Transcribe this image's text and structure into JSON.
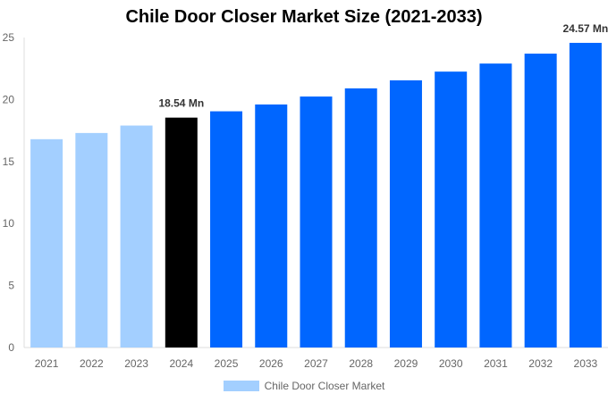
{
  "chart_data": {
    "type": "bar",
    "title": "Chile Door Closer Market Size (2021-2033)",
    "categories": [
      "2021",
      "2022",
      "2023",
      "2024",
      "2025",
      "2026",
      "2027",
      "2028",
      "2029",
      "2030",
      "2031",
      "2032",
      "2033"
    ],
    "series": [
      {
        "name": "Chile Door Closer Market",
        "values": [
          16.8,
          17.3,
          17.9,
          18.54,
          19.05,
          19.6,
          20.24,
          20.9,
          21.55,
          22.25,
          22.9,
          23.7,
          24.57
        ]
      }
    ],
    "data_labels": {
      "3": "18.54 Mn",
      "12": "24.57 Mn"
    },
    "bar_colors": [
      "#a3cfff",
      "#a3cfff",
      "#a3cfff",
      "#000000",
      "#0066ff",
      "#0066ff",
      "#0066ff",
      "#0066ff",
      "#0066ff",
      "#0066ff",
      "#0066ff",
      "#0066ff",
      "#0066ff"
    ],
    "ylim": [
      0,
      25
    ],
    "yticks": [
      0,
      5,
      10,
      15,
      20,
      25
    ],
    "xlabel": "",
    "ylabel": "",
    "grid": false,
    "legend_position": "bottom",
    "legend_color": "#a3cfff"
  }
}
